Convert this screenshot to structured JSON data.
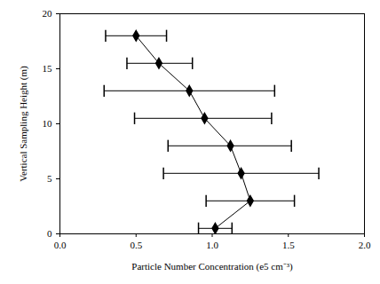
{
  "chart_data": {
    "type": "line",
    "xlabel": "Particle Number Concentration (e5 cm⁻³)",
    "ylabel": "Vertical Sampling Height (m)",
    "x": [
      1.02,
      1.25,
      1.19,
      1.12,
      0.95,
      0.85,
      0.65,
      0.5
    ],
    "y": [
      0.5,
      3,
      5.5,
      8,
      10.5,
      13,
      15.5,
      18
    ],
    "x_error_low": [
      0.91,
      0.96,
      0.68,
      0.71,
      0.49,
      0.29,
      0.44,
      0.3
    ],
    "x_error_high": [
      1.13,
      1.54,
      1.7,
      1.52,
      1.39,
      1.41,
      0.87,
      0.7
    ],
    "xlim": [
      0,
      2
    ],
    "xticks": [
      {
        "value": 0,
        "label": "0.0"
      },
      0.5,
      {
        "value": 1,
        "label": "1.0"
      },
      1.5,
      {
        "value": 2,
        "label": "2.0"
      }
    ],
    "ylim": [
      0,
      20
    ],
    "yticks": [
      0,
      5,
      10,
      15,
      20
    ],
    "color": "#000000",
    "marker": "diamond",
    "line_style": "solid",
    "grid": false
  }
}
